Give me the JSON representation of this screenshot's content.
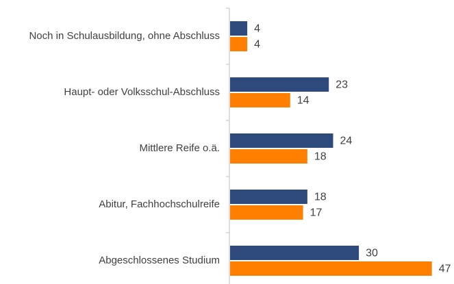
{
  "chart_data": {
    "type": "bar",
    "orientation": "horizontal",
    "categories": [
      "Noch in Schulausbildung, ohne Abschluss",
      "Haupt- oder Volksschul-Abschluss",
      "Mittlere Reife o.ä.",
      "Abitur, Fachhochschulreife",
      "Abgeschlossenes Studium"
    ],
    "series": [
      {
        "color": "#2e4a7d",
        "values": [
          4,
          23,
          24,
          18,
          30
        ]
      },
      {
        "color": "#ff7f00",
        "values": [
          4,
          14,
          18,
          17,
          47
        ]
      }
    ]
  }
}
